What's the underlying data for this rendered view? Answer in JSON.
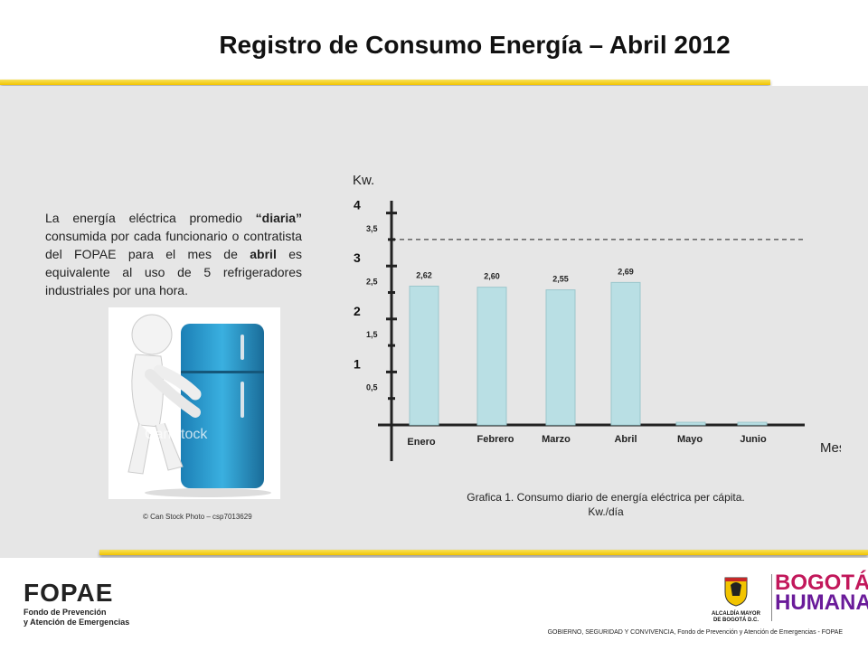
{
  "header": {
    "title": "Registro de Consumo Energía – Abril 2012"
  },
  "description": {
    "part1": "La energía eléctrica promedio ",
    "bold1": "“diaria”",
    "part2": " consumida por cada funcionario o contratista del FOPAE para el mes de ",
    "bold2": "abril",
    "part3": " es equivalente al uso de 5 refrigeradores industriales por una hora."
  },
  "image": {
    "credit": "© Can Stock Photo – csp7013629",
    "watermark": "CanStock"
  },
  "chart_data": {
    "type": "bar",
    "ylabel": "Kw.",
    "xlabel": "Mes",
    "categories": [
      "Enero",
      "Febrero",
      "Marzo",
      "Abril",
      "Mayo",
      "Junio"
    ],
    "values": [
      2.62,
      2.6,
      2.55,
      2.69,
      0.05,
      0.05
    ],
    "data_labels": [
      "2,62",
      "2,60",
      "2,55",
      "2,69",
      "",
      ""
    ],
    "ylim": [
      0,
      4.5
    ],
    "major_ticks": [
      {
        "value": 1,
        "label": "1"
      },
      {
        "value": 2,
        "label": "2"
      },
      {
        "value": 3,
        "label": "3"
      },
      {
        "value": 4,
        "label": "4"
      }
    ],
    "minor_ticks": [
      {
        "value": 0.5,
        "label": "0,5"
      },
      {
        "value": 1.5,
        "label": "1,5"
      },
      {
        "value": 2.5,
        "label": "2,5"
      },
      {
        "value": 3.5,
        "label": "3,5"
      }
    ],
    "reference_line": 3.5,
    "bar_color": "#b9dfe4",
    "axis_color": "#222222",
    "grid": false,
    "legend": "none"
  },
  "caption": {
    "line1": "Grafica 1. Consumo diario de energía eléctrica per cápita.",
    "line2": "Kw./día"
  },
  "footer": {
    "logo_text": "FOPAE",
    "logo_sub1": "Fondo de Prevención",
    "logo_sub2": "y Atención de Emergencias",
    "alcaldia1": "ALCALDÍA MAYOR",
    "alcaldia2": "DE BOGOTÁ D.C.",
    "bogota1": "BOGOTÁ",
    "bogota2": "HUMANA",
    "gov_line": "GOBIERNO, SEGURIDAD Y CONVIVENCIA, Fondo de Prevención y Atención de Emergencias - FOPAE"
  }
}
